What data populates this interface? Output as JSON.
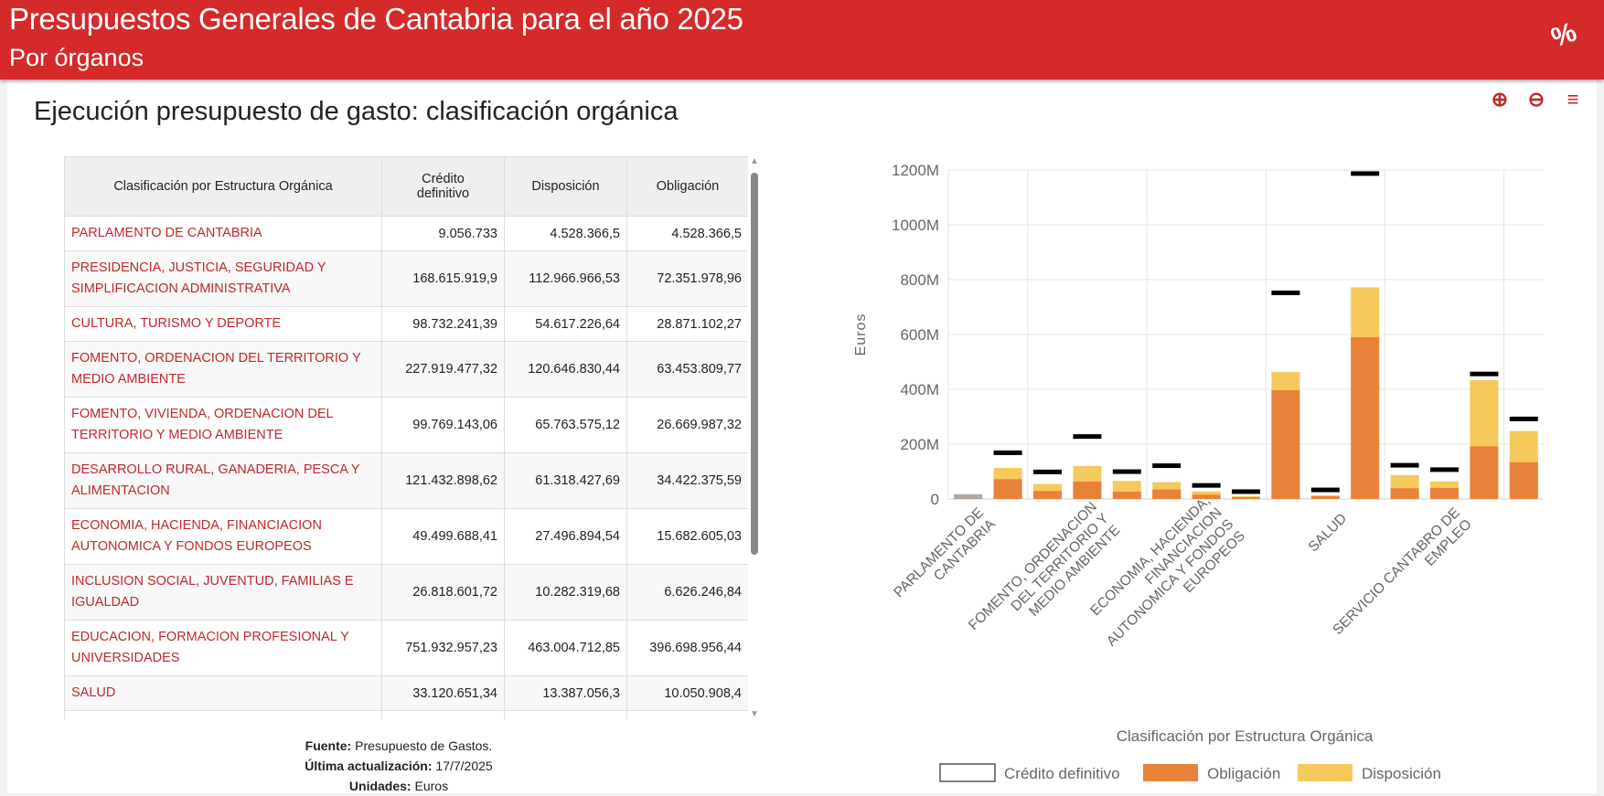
{
  "header": {
    "title": "Presupuestos Generales de Cantabria para el año 2025",
    "subtitle": "Por órganos",
    "logo": "%"
  },
  "page_title": "Ejecución presupuesto de gasto: clasificación orgánica",
  "toolbar": {
    "zoom_in": "zoom-in-icon",
    "zoom_out": "zoom-out-icon",
    "menu": "menu-icon"
  },
  "table": {
    "headers": [
      "Clasificación por Estructura Orgánica",
      "Crédito definitivo",
      "Disposición",
      "Obligación"
    ],
    "rows": [
      [
        "PARLAMENTO DE CANTABRIA",
        "9.056.733",
        "4.528.366,5",
        "4.528.366,5"
      ],
      [
        "PRESIDENCIA, JUSTICIA, SEGURIDAD Y SIMPLIFICACION ADMINISTRATIVA",
        "168.615.919,9",
        "112.966.966,53",
        "72.351.978,96"
      ],
      [
        "CULTURA, TURISMO Y DEPORTE",
        "98.732.241,39",
        "54.617.226,64",
        "28.871.102,27"
      ],
      [
        "FOMENTO, ORDENACION DEL TERRITORIO Y MEDIO AMBIENTE",
        "227.919.477,32",
        "120.646.830,44",
        "63.453.809,77"
      ],
      [
        "FOMENTO, VIVIENDA, ORDENACION DEL TERRITORIO Y MEDIO AMBIENTE",
        "99.769.143,06",
        "65.763.575,12",
        "26.669.987,32"
      ],
      [
        "DESARROLLO RURAL, GANADERIA, PESCA Y ALIMENTACION",
        "121.432.898,62",
        "61.318.427,69",
        "34.422.375,59"
      ],
      [
        "ECONOMIA, HACIENDA, FINANCIACION AUTONOMICA Y FONDOS EUROPEOS",
        "49.499.688,41",
        "27.496.894,54",
        "15.682.605,03"
      ],
      [
        "INCLUSION SOCIAL, JUVENTUD, FAMILIAS E IGUALDAD",
        "26.818.601,72",
        "10.282.319,68",
        "6.626.246,84"
      ],
      [
        "EDUCACION, FORMACION PROFESIONAL Y UNIVERSIDADES",
        "751.932.957,23",
        "463.004.712,85",
        "396.698.956,44"
      ],
      [
        "SALUD",
        "33.120.651,34",
        "13.387.056,3",
        "10.050.908,4"
      ]
    ]
  },
  "footer": {
    "source_label": "Fuente:",
    "source": "Presupuesto de Gastos.",
    "updated_label": "Última actualización:",
    "updated": "17/7/2025",
    "units_label": "Unidades:",
    "units": "Euros"
  },
  "colors": {
    "brand": "#d42a2a",
    "row_text": "#c0282d",
    "obligacion": "#e8823a",
    "disposicion": "#f6c95c",
    "credito": "#000000"
  },
  "chart_data": {
    "type": "bar",
    "xlabel": "Clasificación por Estructura Orgánica",
    "ylabel": "Euros",
    "ylim": [
      0,
      1200
    ],
    "yticks": [
      "0",
      "200M",
      "400M",
      "600M",
      "800M",
      "1000M",
      "1200M"
    ],
    "grid": true,
    "legend_position": "bottom",
    "tick_labels": [
      {
        "index": 0,
        "lines": [
          "PARLAMENTO DE",
          "CANTABRIA"
        ]
      },
      {
        "index": 3,
        "lines": [
          "FOMENTO, ORDENACION",
          "DEL TERRITORIO Y",
          "MEDIO AMBIENTE"
        ]
      },
      {
        "index": 6,
        "lines": [
          "ECONOMIA, HACIENDA,",
          "FINANCIACION",
          "AUTONOMICA Y FONDOS",
          "EUROPEOS"
        ]
      },
      {
        "index": 9,
        "lines": [
          "SALUD"
        ]
      },
      {
        "index": 12,
        "lines": [
          "SERVICIO CANTABRO DE",
          "EMPLEO"
        ]
      }
    ],
    "series": [
      {
        "name": "Crédito definitivo",
        "values": [
          9.06,
          168.6,
          98.7,
          227.9,
          99.8,
          121.4,
          49.5,
          26.8,
          751.9,
          33.1,
          1187,
          123,
          107,
          456,
          292
        ]
      },
      {
        "name": "Obligación",
        "values": [
          4.53,
          72.4,
          28.9,
          63.5,
          26.7,
          34.4,
          15.7,
          6.6,
          396.7,
          10.1,
          590,
          39,
          40,
          192,
          134
        ]
      },
      {
        "name": "Disposición",
        "values": [
          4.53,
          113.0,
          54.6,
          120.6,
          65.8,
          61.3,
          27.5,
          10.3,
          463.0,
          13.4,
          772,
          87,
          64,
          433,
          248
        ]
      }
    ]
  }
}
